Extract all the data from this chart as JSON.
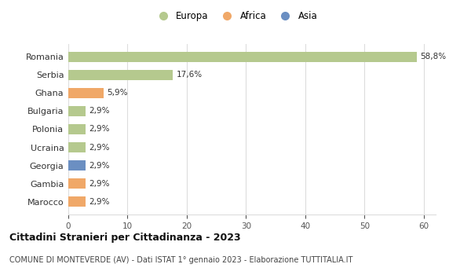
{
  "countries": [
    "Romania",
    "Serbia",
    "Ghana",
    "Bulgaria",
    "Polonia",
    "Ucraina",
    "Georgia",
    "Gambia",
    "Marocco"
  ],
  "values": [
    58.8,
    17.6,
    5.9,
    2.9,
    2.9,
    2.9,
    2.9,
    2.9,
    2.9
  ],
  "labels": [
    "58,8%",
    "17,6%",
    "5,9%",
    "2,9%",
    "2,9%",
    "2,9%",
    "2,9%",
    "2,9%",
    "2,9%"
  ],
  "colors": [
    "#b5c98e",
    "#b5c98e",
    "#f0a868",
    "#b5c98e",
    "#b5c98e",
    "#b5c98e",
    "#6b8fc2",
    "#f0a868",
    "#f0a868"
  ],
  "legend": [
    {
      "label": "Europa",
      "color": "#b5c98e"
    },
    {
      "label": "Africa",
      "color": "#f0a868"
    },
    {
      "label": "Asia",
      "color": "#6b8fc2"
    }
  ],
  "xlim": [
    0,
    62
  ],
  "xticks": [
    0,
    10,
    20,
    30,
    40,
    50,
    60
  ],
  "title": "Cittadini Stranieri per Cittadinanza - 2023",
  "subtitle": "COMUNE DI MONTEVERDE (AV) - Dati ISTAT 1° gennaio 2023 - Elaborazione TUTTITALIA.IT",
  "bg_color": "#ffffff",
  "grid_color": "#dddddd",
  "bar_height": 0.55
}
